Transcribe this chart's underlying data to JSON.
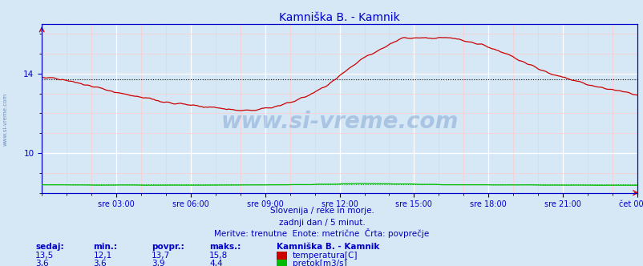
{
  "title": "Kamniška B. - Kamnik",
  "title_color": "#0000cc",
  "bg_color": "#d6e8f5",
  "plot_bg_color": "#d6e8f5",
  "grid_major_color": "#ffffff",
  "grid_minor_color": "#ffcccc",
  "temp_color": "#cc0000",
  "flow_color": "#00bb00",
  "avg_temp_color": "#000000",
  "avg_flow_color": "#00bb00",
  "avg_temp": 13.7,
  "avg_flow": 3.9,
  "ylim": [
    8.0,
    16.5
  ],
  "yticks": [
    10,
    14
  ],
  "y_flow_scale_min": 0,
  "y_flow_scale_max": 20,
  "xtick_positions": [
    3,
    6,
    9,
    12,
    15,
    18,
    21,
    24
  ],
  "xtick_labels": [
    "sre 03:00",
    "sre 06:00",
    "sre 09:00",
    "sre 12:00",
    "sre 15:00",
    "sre 18:00",
    "sre 21:00",
    "čet 00:00"
  ],
  "watermark": "www.si-vreme.com",
  "watermark_color": "#4477bb",
  "watermark_alpha": 0.3,
  "side_label": "www.si-vreme.com",
  "subtitle1": "Slovenija / reke in morje.",
  "subtitle2": "zadnji dan / 5 minut.",
  "subtitle3": "Meritve: trenutne  Enote: metrične  Črta: povprečje",
  "text_color": "#0000bb",
  "footer_color": "#0000cc",
  "legend_title": "Kamniška B. - Kamnik",
  "label_temp": "temperatura[C]",
  "label_flow": "pretok[m3/s]",
  "col_headers": [
    "sedaj:",
    "min.:",
    "povpr.:",
    "maks.:"
  ],
  "sedaj_temp": "13,5",
  "min_temp": "12,1",
  "povpr_temp": "13,7",
  "maks_temp": "15,8",
  "sedaj_flow": "3,6",
  "min_flow": "3,6",
  "povpr_flow": "3,9",
  "maks_flow": "4,4",
  "spine_color": "#0000cc",
  "n_points": 288
}
